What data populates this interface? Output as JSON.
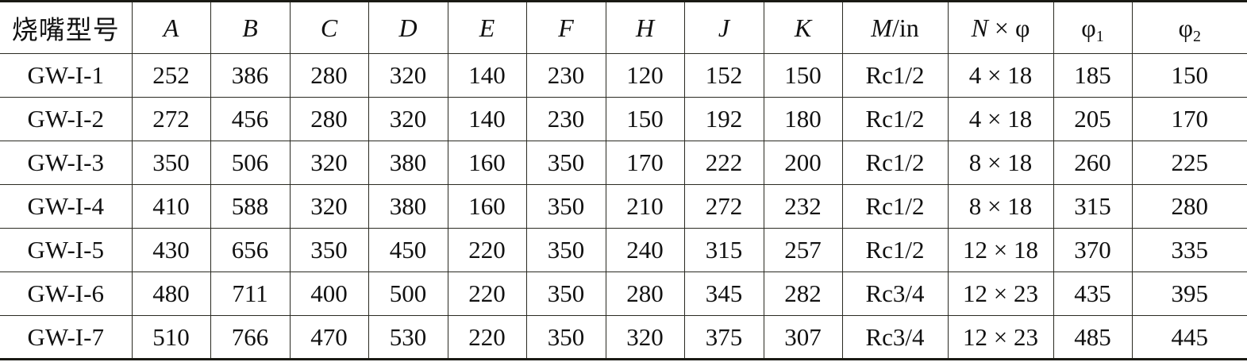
{
  "table": {
    "headers": [
      [
        {
          "t": "烧嘴型号"
        }
      ],
      [
        {
          "t": "A",
          "i": true
        }
      ],
      [
        {
          "t": "B",
          "i": true
        }
      ],
      [
        {
          "t": "C",
          "i": true
        }
      ],
      [
        {
          "t": "D",
          "i": true
        }
      ],
      [
        {
          "t": "E",
          "i": true
        }
      ],
      [
        {
          "t": "F",
          "i": true
        }
      ],
      [
        {
          "t": "H",
          "i": true
        }
      ],
      [
        {
          "t": "J",
          "i": true
        }
      ],
      [
        {
          "t": "K",
          "i": true
        }
      ],
      [
        {
          "t": "M",
          "i": true
        },
        {
          "t": "/in"
        }
      ],
      [
        {
          "t": "N",
          "i": true
        },
        {
          "t": " × φ"
        }
      ],
      [
        {
          "t": "φ"
        },
        {
          "t": "1",
          "sub": true
        }
      ],
      [
        {
          "t": "φ"
        },
        {
          "t": "2",
          "sub": true
        }
      ]
    ],
    "rows": [
      [
        "GW-I-1",
        "252",
        "386",
        "280",
        "320",
        "140",
        "230",
        "120",
        "152",
        "150",
        "Rc1/2",
        "4 × 18",
        "185",
        "150"
      ],
      [
        "GW-I-2",
        "272",
        "456",
        "280",
        "320",
        "140",
        "230",
        "150",
        "192",
        "180",
        "Rc1/2",
        "4 × 18",
        "205",
        "170"
      ],
      [
        "GW-I-3",
        "350",
        "506",
        "320",
        "380",
        "160",
        "350",
        "170",
        "222",
        "200",
        "Rc1/2",
        "8 × 18",
        "260",
        "225"
      ],
      [
        "GW-I-4",
        "410",
        "588",
        "320",
        "380",
        "160",
        "350",
        "210",
        "272",
        "232",
        "Rc1/2",
        "8 × 18",
        "315",
        "280"
      ],
      [
        "GW-I-5",
        "430",
        "656",
        "350",
        "450",
        "220",
        "350",
        "240",
        "315",
        "257",
        "Rc1/2",
        "12 × 18",
        "370",
        "335"
      ],
      [
        "GW-I-6",
        "480",
        "711",
        "400",
        "500",
        "220",
        "350",
        "280",
        "345",
        "282",
        "Rc3/4",
        "12 × 23",
        "435",
        "395"
      ],
      [
        "GW-I-7",
        "510",
        "766",
        "470",
        "530",
        "220",
        "350",
        "320",
        "375",
        "307",
        "Rc3/4",
        "12 × 23",
        "485",
        "445"
      ]
    ]
  }
}
